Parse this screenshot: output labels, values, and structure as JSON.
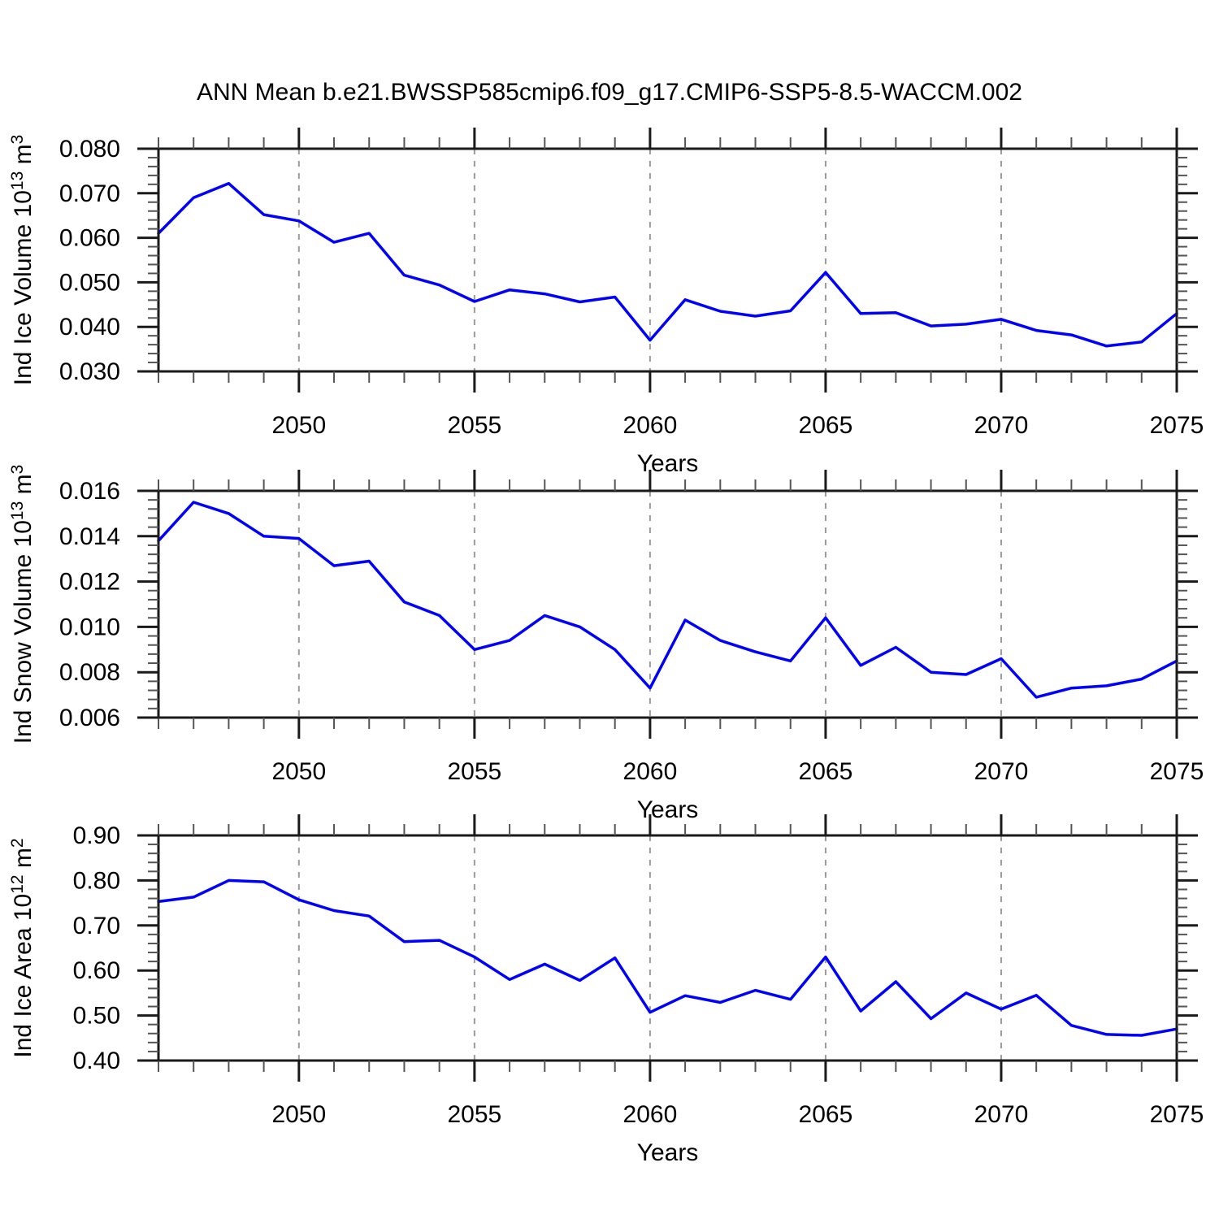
{
  "page": {
    "title": "ANN Mean b.e21.BWSSP585cmip6.f09_g17.CMIP6-SSP5-8.5-WACCM.002"
  },
  "colors": {
    "line": "#0000ff",
    "axis": "#1a1a1a",
    "minor_tick": "#555555",
    "grid": "#9a9a9a",
    "background": "#ffffff",
    "text": "#000000"
  },
  "x_axis": {
    "label": "Years",
    "min": 2046,
    "max": 2075,
    "major_ticks": [
      2050,
      2055,
      2060,
      2065,
      2070,
      2075
    ],
    "major_labels": [
      "2050",
      "2055",
      "2060",
      "2065",
      "2070",
      "2075"
    ],
    "minor_step": 1,
    "gridline_ticks": [
      2050,
      2055,
      2060,
      2065,
      2070
    ]
  },
  "chart_data": [
    {
      "type": "line",
      "name": "ice-volume",
      "ylabel_text": "Ind Ice Volume 10^13 m^3",
      "ylabel_segments": [
        {
          "t": "Ind Ice Volume 10"
        },
        {
          "t": "13",
          "sup": true
        },
        {
          "t": " m"
        },
        {
          "t": "3",
          "sup": true
        }
      ],
      "ylim": [
        0.03,
        0.08
      ],
      "y_major_ticks": [
        0.03,
        0.04,
        0.05,
        0.06,
        0.07,
        0.08
      ],
      "y_tick_labels": [
        "0.030",
        "0.040",
        "0.050",
        "0.060",
        "0.070",
        "0.080"
      ],
      "y_minor_step": 0.002,
      "x": [
        2046,
        2047,
        2048,
        2049,
        2050,
        2051,
        2052,
        2053,
        2054,
        2055,
        2056,
        2057,
        2058,
        2059,
        2060,
        2061,
        2062,
        2063,
        2064,
        2065,
        2066,
        2067,
        2068,
        2069,
        2070,
        2071,
        2072,
        2073,
        2074,
        2075
      ],
      "values": [
        0.061,
        0.069,
        0.0722,
        0.0652,
        0.0638,
        0.059,
        0.061,
        0.0516,
        0.0494,
        0.0457,
        0.0483,
        0.0474,
        0.0456,
        0.0467,
        0.037,
        0.0461,
        0.0435,
        0.0424,
        0.0436,
        0.0522,
        0.043,
        0.0432,
        0.0402,
        0.0406,
        0.0417,
        0.0392,
        0.0382,
        0.0357,
        0.0366,
        0.043
      ]
    },
    {
      "type": "line",
      "name": "snow-volume",
      "ylabel_text": "Ind Snow Volume 10^13 m^3",
      "ylabel_segments": [
        {
          "t": "Ind Snow Volume 10"
        },
        {
          "t": "13",
          "sup": true
        },
        {
          "t": " m"
        },
        {
          "t": "3",
          "sup": true
        }
      ],
      "ylim": [
        0.006,
        0.016
      ],
      "y_major_ticks": [
        0.006,
        0.008,
        0.01,
        0.012,
        0.014,
        0.016
      ],
      "y_tick_labels": [
        "0.006",
        "0.008",
        "0.010",
        "0.012",
        "0.014",
        "0.016"
      ],
      "y_minor_step": 0.0004,
      "x": [
        2046,
        2047,
        2048,
        2049,
        2050,
        2051,
        2052,
        2053,
        2054,
        2055,
        2056,
        2057,
        2058,
        2059,
        2060,
        2061,
        2062,
        2063,
        2064,
        2065,
        2066,
        2067,
        2068,
        2069,
        2070,
        2071,
        2072,
        2073,
        2074,
        2075
      ],
      "values": [
        0.0138,
        0.0155,
        0.015,
        0.014,
        0.0139,
        0.0127,
        0.0129,
        0.0111,
        0.0105,
        0.009,
        0.0094,
        0.0105,
        0.01,
        0.009,
        0.0073,
        0.0103,
        0.0094,
        0.0089,
        0.0085,
        0.0104,
        0.0083,
        0.0091,
        0.008,
        0.0079,
        0.0086,
        0.0069,
        0.0073,
        0.0074,
        0.0077,
        0.0085
      ]
    },
    {
      "type": "line",
      "name": "ice-area",
      "ylabel_text": "Ind Ice Area 10^12 m^2",
      "ylabel_segments": [
        {
          "t": "Ind Ice Area 10"
        },
        {
          "t": "12",
          "sup": true
        },
        {
          "t": " m"
        },
        {
          "t": "2",
          "sup": true
        }
      ],
      "ylim": [
        0.4,
        0.9
      ],
      "y_major_ticks": [
        0.4,
        0.5,
        0.6,
        0.7,
        0.8,
        0.9
      ],
      "y_tick_labels": [
        "0.40",
        "0.50",
        "0.60",
        "0.70",
        "0.80",
        "0.90"
      ],
      "y_minor_step": 0.02,
      "x": [
        2046,
        2047,
        2048,
        2049,
        2050,
        2051,
        2052,
        2053,
        2054,
        2055,
        2056,
        2057,
        2058,
        2059,
        2060,
        2061,
        2062,
        2063,
        2064,
        2065,
        2066,
        2067,
        2068,
        2069,
        2070,
        2071,
        2072,
        2073,
        2074,
        2075
      ],
      "values": [
        0.753,
        0.763,
        0.8,
        0.797,
        0.757,
        0.733,
        0.721,
        0.664,
        0.667,
        0.63,
        0.58,
        0.614,
        0.578,
        0.628,
        0.507,
        0.544,
        0.529,
        0.556,
        0.536,
        0.63,
        0.51,
        0.575,
        0.493,
        0.55,
        0.514,
        0.545,
        0.478,
        0.458,
        0.456,
        0.47
      ]
    }
  ]
}
